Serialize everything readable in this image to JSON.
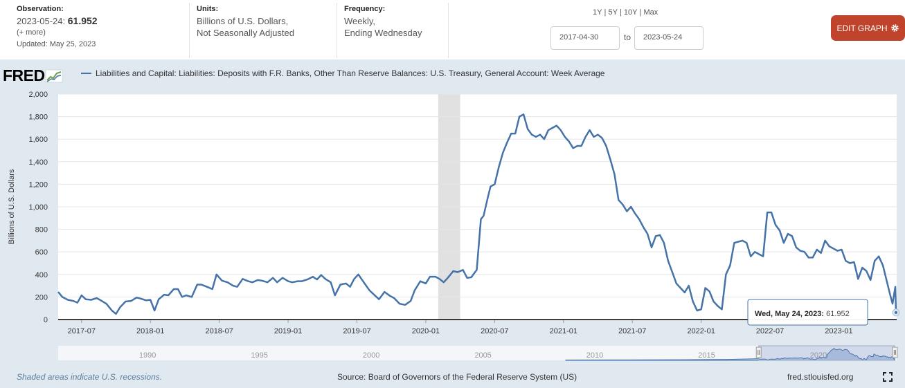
{
  "observation": {
    "label": "Observation:",
    "date_prefix": "2023-05-24:",
    "value": "61.952",
    "more": "(+ more)",
    "updated": "Updated: May 25, 2023"
  },
  "units": {
    "label": "Units:",
    "line1": "Billions of U.S. Dollars,",
    "line2": "Not Seasonally Adjusted"
  },
  "frequency": {
    "label": "Frequency:",
    "line1": "Weekly,",
    "line2": "Ending Wednesday"
  },
  "ranges": [
    "1Y",
    "5Y",
    "10Y",
    "Max"
  ],
  "date_range": {
    "start": "2017-04-30",
    "to": "to",
    "end": "2023-05-24"
  },
  "edit_button": {
    "label": "EDIT GRAPH"
  },
  "logo": {
    "text": "FRED"
  },
  "series_title": "Liabilities and Capital: Liabilities: Deposits with F.R. Banks, Other Than Reserve Balances: U.S. Treasury, General Account: Week Average",
  "tooltip": {
    "date": "Wed, May 24, 2023:",
    "value": "61.952"
  },
  "footer": {
    "recession_note": "Shaded areas indicate U.S. recessions.",
    "source": "Source: Board of Governors of the Federal Reserve System (US)",
    "site": "fred.stlouisfed.org"
  },
  "colors": {
    "line": "#4572a7",
    "recession": "#e1e1e1",
    "accent": "#c0442c"
  },
  "chart_data": {
    "type": "line",
    "title": "Liabilities and Capital: Liabilities: Deposits with F.R. Banks, Other Than Reserve Balances: U.S. Treasury, General Account: Week Average",
    "ylabel": "Billions of U.S. Dollars",
    "xlabel": "",
    "ylim": [
      0,
      2000
    ],
    "yticks": [
      0,
      200,
      400,
      600,
      800,
      1000,
      1200,
      1400,
      1600,
      1800,
      2000
    ],
    "ytick_labels": [
      "0",
      "200",
      "400",
      "600",
      "800",
      "1,000",
      "1,200",
      "1,400",
      "1,600",
      "1,800",
      "2,000"
    ],
    "xlim": [
      2017.33,
      2023.42
    ],
    "xticks": [
      {
        "t": 2017.5,
        "label": "2017-07"
      },
      {
        "t": 2018.0,
        "label": "2018-01"
      },
      {
        "t": 2018.5,
        "label": "2018-07"
      },
      {
        "t": 2019.0,
        "label": "2019-01"
      },
      {
        "t": 2019.5,
        "label": "2019-07"
      },
      {
        "t": 2020.0,
        "label": "2020-01"
      },
      {
        "t": 2020.5,
        "label": "2020-07"
      },
      {
        "t": 2021.0,
        "label": "2021-01"
      },
      {
        "t": 2021.5,
        "label": "2021-07"
      },
      {
        "t": 2022.0,
        "label": "2022-01"
      },
      {
        "t": 2022.5,
        "label": "2022-07"
      },
      {
        "t": 2023.0,
        "label": "2023-01"
      }
    ],
    "recessions": [
      [
        2020.09,
        2020.25
      ]
    ],
    "series": [
      {
        "name": "Liabilities and Capital: Liabilities: Deposits with F.R. Banks, Other Than Reserve Balances: U.S. Treasury, General Account: Week Average",
        "points": [
          [
            2017.33,
            245
          ],
          [
            2017.36,
            200
          ],
          [
            2017.4,
            175
          ],
          [
            2017.44,
            165
          ],
          [
            2017.47,
            150
          ],
          [
            2017.5,
            215
          ],
          [
            2017.53,
            180
          ],
          [
            2017.57,
            175
          ],
          [
            2017.61,
            190
          ],
          [
            2017.64,
            170
          ],
          [
            2017.68,
            140
          ],
          [
            2017.72,
            80
          ],
          [
            2017.75,
            50
          ],
          [
            2017.78,
            110
          ],
          [
            2017.82,
            160
          ],
          [
            2017.86,
            165
          ],
          [
            2017.9,
            195
          ],
          [
            2017.93,
            185
          ],
          [
            2017.97,
            170
          ],
          [
            2018.0,
            175
          ],
          [
            2018.03,
            80
          ],
          [
            2018.06,
            180
          ],
          [
            2018.1,
            220
          ],
          [
            2018.13,
            215
          ],
          [
            2018.17,
            270
          ],
          [
            2018.2,
            270
          ],
          [
            2018.23,
            200
          ],
          [
            2018.26,
            215
          ],
          [
            2018.3,
            200
          ],
          [
            2018.34,
            310
          ],
          [
            2018.37,
            310
          ],
          [
            2018.41,
            290
          ],
          [
            2018.45,
            270
          ],
          [
            2018.48,
            400
          ],
          [
            2018.52,
            345
          ],
          [
            2018.56,
            330
          ],
          [
            2018.6,
            300
          ],
          [
            2018.63,
            290
          ],
          [
            2018.67,
            360
          ],
          [
            2018.71,
            340
          ],
          [
            2018.74,
            330
          ],
          [
            2018.78,
            350
          ],
          [
            2018.81,
            345
          ],
          [
            2018.85,
            330
          ],
          [
            2018.89,
            370
          ],
          [
            2018.92,
            330
          ],
          [
            2018.96,
            370
          ],
          [
            2019.0,
            340
          ],
          [
            2019.03,
            330
          ],
          [
            2019.07,
            340
          ],
          [
            2019.1,
            340
          ],
          [
            2019.14,
            355
          ],
          [
            2019.18,
            380
          ],
          [
            2019.21,
            355
          ],
          [
            2019.24,
            395
          ],
          [
            2019.27,
            360
          ],
          [
            2019.31,
            330
          ],
          [
            2019.34,
            215
          ],
          [
            2019.38,
            310
          ],
          [
            2019.42,
            320
          ],
          [
            2019.45,
            290
          ],
          [
            2019.48,
            360
          ],
          [
            2019.51,
            400
          ],
          [
            2019.55,
            330
          ],
          [
            2019.59,
            260
          ],
          [
            2019.62,
            225
          ],
          [
            2019.66,
            180
          ],
          [
            2019.7,
            245
          ],
          [
            2019.74,
            210
          ],
          [
            2019.77,
            190
          ],
          [
            2019.81,
            140
          ],
          [
            2019.85,
            130
          ],
          [
            2019.89,
            165
          ],
          [
            2019.92,
            260
          ],
          [
            2019.96,
            340
          ],
          [
            2020.0,
            320
          ],
          [
            2020.03,
            380
          ],
          [
            2020.07,
            380
          ],
          [
            2020.1,
            360
          ],
          [
            2020.13,
            330
          ],
          [
            2020.16,
            370
          ],
          [
            2020.2,
            430
          ],
          [
            2020.23,
            420
          ],
          [
            2020.27,
            440
          ],
          [
            2020.3,
            370
          ],
          [
            2020.33,
            375
          ],
          [
            2020.37,
            440
          ],
          [
            2020.4,
            890
          ],
          [
            2020.42,
            920
          ],
          [
            2020.45,
            1080
          ],
          [
            2020.47,
            1180
          ],
          [
            2020.5,
            1200
          ],
          [
            2020.53,
            1350
          ],
          [
            2020.56,
            1480
          ],
          [
            2020.59,
            1570
          ],
          [
            2020.62,
            1650
          ],
          [
            2020.65,
            1650
          ],
          [
            2020.68,
            1800
          ],
          [
            2020.71,
            1820
          ],
          [
            2020.74,
            1690
          ],
          [
            2020.77,
            1640
          ],
          [
            2020.8,
            1620
          ],
          [
            2020.83,
            1640
          ],
          [
            2020.86,
            1600
          ],
          [
            2020.89,
            1680
          ],
          [
            2020.92,
            1700
          ],
          [
            2020.95,
            1720
          ],
          [
            2020.98,
            1680
          ],
          [
            2021.01,
            1620
          ],
          [
            2021.04,
            1580
          ],
          [
            2021.07,
            1520
          ],
          [
            2021.1,
            1540
          ],
          [
            2021.13,
            1540
          ],
          [
            2021.16,
            1620
          ],
          [
            2021.19,
            1680
          ],
          [
            2021.22,
            1620
          ],
          [
            2021.25,
            1640
          ],
          [
            2021.28,
            1610
          ],
          [
            2021.31,
            1540
          ],
          [
            2021.34,
            1420
          ],
          [
            2021.37,
            1290
          ],
          [
            2021.4,
            1060
          ],
          [
            2021.43,
            1020
          ],
          [
            2021.46,
            960
          ],
          [
            2021.49,
            1000
          ],
          [
            2021.52,
            940
          ],
          [
            2021.55,
            890
          ],
          [
            2021.58,
            820
          ],
          [
            2021.61,
            760
          ],
          [
            2021.64,
            640
          ],
          [
            2021.67,
            740
          ],
          [
            2021.7,
            750
          ],
          [
            2021.73,
            680
          ],
          [
            2021.76,
            520
          ],
          [
            2021.79,
            420
          ],
          [
            2021.82,
            320
          ],
          [
            2021.85,
            280
          ],
          [
            2021.88,
            240
          ],
          [
            2021.91,
            300
          ],
          [
            2021.94,
            160
          ],
          [
            2021.97,
            80
          ],
          [
            2022.0,
            90
          ],
          [
            2022.03,
            280
          ],
          [
            2022.06,
            250
          ],
          [
            2022.09,
            160
          ],
          [
            2022.12,
            120
          ],
          [
            2022.15,
            90
          ],
          [
            2022.18,
            400
          ],
          [
            2022.21,
            480
          ],
          [
            2022.24,
            680
          ],
          [
            2022.27,
            690
          ],
          [
            2022.3,
            700
          ],
          [
            2022.33,
            680
          ],
          [
            2022.36,
            560
          ],
          [
            2022.39,
            600
          ],
          [
            2022.42,
            580
          ],
          [
            2022.45,
            560
          ],
          [
            2022.48,
            950
          ],
          [
            2022.51,
            950
          ],
          [
            2022.54,
            840
          ],
          [
            2022.57,
            790
          ],
          [
            2022.6,
            680
          ],
          [
            2022.63,
            760
          ],
          [
            2022.66,
            740
          ],
          [
            2022.69,
            640
          ],
          [
            2022.72,
            610
          ],
          [
            2022.75,
            600
          ],
          [
            2022.78,
            550
          ],
          [
            2022.81,
            550
          ],
          [
            2022.84,
            620
          ],
          [
            2022.87,
            590
          ],
          [
            2022.9,
            700
          ],
          [
            2022.93,
            650
          ],
          [
            2022.96,
            630
          ],
          [
            2022.99,
            610
          ],
          [
            2023.02,
            620
          ],
          [
            2023.05,
            520
          ],
          [
            2023.08,
            500
          ],
          [
            2023.11,
            510
          ],
          [
            2023.14,
            360
          ],
          [
            2023.17,
            460
          ],
          [
            2023.2,
            430
          ],
          [
            2023.23,
            350
          ],
          [
            2023.26,
            520
          ],
          [
            2023.29,
            560
          ],
          [
            2023.32,
            480
          ],
          [
            2023.35,
            330
          ],
          [
            2023.37,
            230
          ],
          [
            2023.39,
            140
          ],
          [
            2023.41,
            290
          ],
          [
            2023.415,
            62
          ]
        ]
      }
    ],
    "navigator": {
      "labels": [
        {
          "t": 1990,
          "label": "1990"
        },
        {
          "t": 1995,
          "label": "1995"
        },
        {
          "t": 2000,
          "label": "2000"
        },
        {
          "t": 2005,
          "label": "2005"
        },
        {
          "t": 2010,
          "label": "2010"
        },
        {
          "t": 2015,
          "label": "2015"
        },
        {
          "t": 2020,
          "label": "2020"
        }
      ],
      "range": [
        1986,
        2023.5
      ],
      "selected": [
        2017.33,
        2023.42
      ]
    }
  }
}
